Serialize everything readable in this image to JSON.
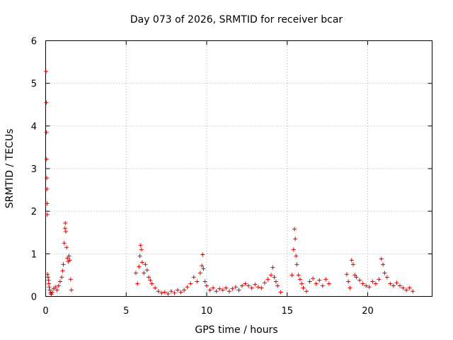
{
  "chart_data": {
    "type": "scatter",
    "title": "Day 073 of 2026, SRMTID for receiver bcar",
    "xlabel": "GPS time / hours",
    "ylabel": "SRMTID / TECUs",
    "xlim": [
      0,
      24
    ],
    "ylim": [
      0,
      6
    ],
    "xticks": [
      0,
      5,
      10,
      15,
      20
    ],
    "yticks": [
      0,
      1,
      2,
      3,
      4,
      5,
      6
    ],
    "x_tick_labels": [
      "0",
      "5",
      "10",
      "15",
      "20"
    ],
    "y_tick_labels": [
      "0",
      "1",
      "2",
      "3",
      "4",
      "5",
      "6"
    ],
    "grid": true,
    "marker": "plus",
    "series": [
      {
        "name": "SRMTID",
        "color": "#e00000",
        "points": [
          [
            0.02,
            5.28
          ],
          [
            0.04,
            4.55
          ],
          [
            0.05,
            3.85
          ],
          [
            0.06,
            3.22
          ],
          [
            0.07,
            2.78
          ],
          [
            0.08,
            2.52
          ],
          [
            0.09,
            2.18
          ],
          [
            0.1,
            1.92
          ],
          [
            0.12,
            0.52
          ],
          [
            0.15,
            0.45
          ],
          [
            0.18,
            0.38
          ],
          [
            0.2,
            0.3
          ],
          [
            0.22,
            0.22
          ],
          [
            0.25,
            0.15
          ],
          [
            0.3,
            0.08
          ],
          [
            0.35,
            0.05
          ],
          [
            0.4,
            0.1
          ],
          [
            0.5,
            0.18
          ],
          [
            0.6,
            0.22
          ],
          [
            0.7,
            0.15
          ],
          [
            0.8,
            0.25
          ],
          [
            0.9,
            0.35
          ],
          [
            1.0,
            0.45
          ],
          [
            1.05,
            0.6
          ],
          [
            1.1,
            0.75
          ],
          [
            1.15,
            1.25
          ],
          [
            1.2,
            1.6
          ],
          [
            1.22,
            1.72
          ],
          [
            1.25,
            1.52
          ],
          [
            1.3,
            1.15
          ],
          [
            1.35,
            0.9
          ],
          [
            1.4,
            0.82
          ],
          [
            1.45,
            0.95
          ],
          [
            1.5,
            0.85
          ],
          [
            1.55,
            0.4
          ],
          [
            1.6,
            0.15
          ],
          [
            5.6,
            0.55
          ],
          [
            5.7,
            0.3
          ],
          [
            5.8,
            0.7
          ],
          [
            5.85,
            0.95
          ],
          [
            5.9,
            1.2
          ],
          [
            5.95,
            1.1
          ],
          [
            6.0,
            0.8
          ],
          [
            6.1,
            0.55
          ],
          [
            6.2,
            0.75
          ],
          [
            6.3,
            0.62
          ],
          [
            6.4,
            0.45
          ],
          [
            6.5,
            0.38
          ],
          [
            6.6,
            0.3
          ],
          [
            6.8,
            0.2
          ],
          [
            7.0,
            0.12
          ],
          [
            7.2,
            0.08
          ],
          [
            7.4,
            0.1
          ],
          [
            7.6,
            0.06
          ],
          [
            7.8,
            0.12
          ],
          [
            8.0,
            0.08
          ],
          [
            8.2,
            0.15
          ],
          [
            8.4,
            0.1
          ],
          [
            8.6,
            0.15
          ],
          [
            8.8,
            0.22
          ],
          [
            9.0,
            0.3
          ],
          [
            9.2,
            0.45
          ],
          [
            9.4,
            0.35
          ],
          [
            9.6,
            0.55
          ],
          [
            9.7,
            0.72
          ],
          [
            9.75,
            0.98
          ],
          [
            9.8,
            0.65
          ],
          [
            9.9,
            0.35
          ],
          [
            10.0,
            0.25
          ],
          [
            10.2,
            0.15
          ],
          [
            10.4,
            0.2
          ],
          [
            10.6,
            0.12
          ],
          [
            10.8,
            0.18
          ],
          [
            11.0,
            0.15
          ],
          [
            11.2,
            0.2
          ],
          [
            11.4,
            0.12
          ],
          [
            11.6,
            0.18
          ],
          [
            11.8,
            0.22
          ],
          [
            12.0,
            0.15
          ],
          [
            12.2,
            0.25
          ],
          [
            12.4,
            0.3
          ],
          [
            12.6,
            0.25
          ],
          [
            12.8,
            0.2
          ],
          [
            13.0,
            0.28
          ],
          [
            13.2,
            0.22
          ],
          [
            13.4,
            0.2
          ],
          [
            13.6,
            0.32
          ],
          [
            13.8,
            0.4
          ],
          [
            14.0,
            0.5
          ],
          [
            14.1,
            0.68
          ],
          [
            14.2,
            0.45
          ],
          [
            14.3,
            0.35
          ],
          [
            14.4,
            0.25
          ],
          [
            14.6,
            0.1
          ],
          [
            15.3,
            0.5
          ],
          [
            15.4,
            1.1
          ],
          [
            15.45,
            1.58
          ],
          [
            15.5,
            1.35
          ],
          [
            15.55,
            0.95
          ],
          [
            15.6,
            0.75
          ],
          [
            15.7,
            0.5
          ],
          [
            15.8,
            0.4
          ],
          [
            15.9,
            0.3
          ],
          [
            16.0,
            0.2
          ],
          [
            16.2,
            0.12
          ],
          [
            16.4,
            0.35
          ],
          [
            16.6,
            0.42
          ],
          [
            16.8,
            0.3
          ],
          [
            17.0,
            0.38
          ],
          [
            17.2,
            0.25
          ],
          [
            17.4,
            0.4
          ],
          [
            17.6,
            0.3
          ],
          [
            18.7,
            0.52
          ],
          [
            18.8,
            0.35
          ],
          [
            18.9,
            0.2
          ],
          [
            19.0,
            0.85
          ],
          [
            19.1,
            0.75
          ],
          [
            19.2,
            0.5
          ],
          [
            19.3,
            0.45
          ],
          [
            19.5,
            0.38
          ],
          [
            19.7,
            0.3
          ],
          [
            19.9,
            0.25
          ],
          [
            20.1,
            0.22
          ],
          [
            20.3,
            0.35
          ],
          [
            20.5,
            0.3
          ],
          [
            20.7,
            0.4
          ],
          [
            20.85,
            0.88
          ],
          [
            20.95,
            0.75
          ],
          [
            21.05,
            0.55
          ],
          [
            21.2,
            0.45
          ],
          [
            21.4,
            0.3
          ],
          [
            21.6,
            0.25
          ],
          [
            21.8,
            0.32
          ],
          [
            22.0,
            0.25
          ],
          [
            22.2,
            0.2
          ],
          [
            22.4,
            0.15
          ],
          [
            22.6,
            0.2
          ],
          [
            22.8,
            0.12
          ]
        ]
      }
    ]
  }
}
